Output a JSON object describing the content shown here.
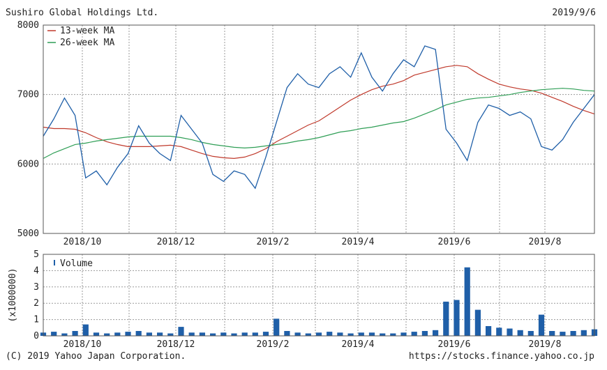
{
  "header": {
    "company": "Sushiro Global Holdings Ltd.",
    "date": "2019/9/6"
  },
  "footer": {
    "copyright": "(C) 2019 Yahoo Japan Corporation.",
    "url": "https://stocks.finance.yahoo.co.jp"
  },
  "colors": {
    "price": "#1f5fa8",
    "ma13": "#c0392b",
    "ma26": "#2e9e55",
    "volume": "#1f5fa8",
    "grid": "#9a9a9a",
    "frame": "#555555"
  },
  "chart_data": [
    {
      "type": "line",
      "title": "",
      "xlabel": "",
      "ylabel": "",
      "ylim": [
        5000,
        8000
      ],
      "y_ticks": [
        "5000",
        "6000",
        "7000",
        "8000"
      ],
      "x_ticks": [
        "2018/10",
        "2018/12",
        "2019/2",
        "2019/4",
        "2019/6",
        "2019/8"
      ],
      "grid": true,
      "legend_position": "top-left",
      "legend": [
        "13-week MA",
        "26-week MA"
      ],
      "x_weeks": [
        0,
        1,
        2,
        3,
        4,
        5,
        6,
        7,
        8,
        9,
        10,
        11,
        12,
        13,
        14,
        15,
        16,
        17,
        18,
        19,
        20,
        21,
        22,
        23,
        24,
        25,
        26,
        27,
        28,
        29,
        30,
        31,
        32,
        33,
        34,
        35,
        36,
        37,
        38,
        39,
        40,
        41,
        42,
        43,
        44,
        45,
        46,
        47,
        48,
        49,
        50,
        51,
        52
      ],
      "series": [
        {
          "name": "Price",
          "values": [
            6400,
            6650,
            6950,
            6700,
            5800,
            5900,
            5700,
            5950,
            6150,
            6550,
            6300,
            6150,
            6050,
            6700,
            6500,
            6300,
            5850,
            5750,
            5900,
            5850,
            5650,
            6100,
            6600,
            7100,
            7300,
            7150,
            7100,
            7300,
            7400,
            7250,
            7600,
            7250,
            7050,
            7300,
            7500,
            7400,
            7700,
            7650,
            6500,
            6300,
            6050,
            6600,
            6850,
            6800,
            6700,
            6750,
            6650,
            6250,
            6200,
            6350,
            6600,
            6800,
            7000
          ]
        },
        {
          "name": "13-week MA",
          "values": [
            6530,
            6510,
            6510,
            6500,
            6450,
            6380,
            6320,
            6280,
            6250,
            6250,
            6250,
            6260,
            6270,
            6250,
            6200,
            6150,
            6110,
            6090,
            6080,
            6100,
            6150,
            6220,
            6320,
            6400,
            6480,
            6560,
            6620,
            6720,
            6820,
            6920,
            7000,
            7070,
            7120,
            7150,
            7200,
            7280,
            7320,
            7360,
            7400,
            7420,
            7400,
            7300,
            7220,
            7150,
            7110,
            7080,
            7060,
            7020,
            6960,
            6900,
            6830,
            6770,
            6720
          ]
        },
        {
          "name": "26-week MA",
          "values": [
            6080,
            6160,
            6220,
            6280,
            6300,
            6330,
            6350,
            6370,
            6390,
            6400,
            6400,
            6400,
            6400,
            6380,
            6350,
            6310,
            6280,
            6260,
            6240,
            6230,
            6240,
            6260,
            6280,
            6300,
            6330,
            6350,
            6380,
            6420,
            6460,
            6480,
            6510,
            6530,
            6560,
            6590,
            6610,
            6660,
            6720,
            6780,
            6850,
            6890,
            6930,
            6950,
            6960,
            6980,
            7000,
            7030,
            7050,
            7070,
            7080,
            7090,
            7080,
            7060,
            7050
          ]
        }
      ]
    },
    {
      "type": "bar",
      "title": "",
      "xlabel": "",
      "ylabel": "(x1000000)",
      "ylim": [
        0,
        5
      ],
      "y_ticks": [
        "0",
        "1",
        "2",
        "3",
        "4",
        "5"
      ],
      "x_ticks": [
        "2018/10",
        "2018/12",
        "2019/2",
        "2019/4",
        "2019/6",
        "2019/8"
      ],
      "grid": true,
      "legend_position": "top-left",
      "legend": [
        "Volume"
      ],
      "series": [
        {
          "name": "Volume",
          "values": [
            0.2,
            0.25,
            0.15,
            0.3,
            0.7,
            0.2,
            0.15,
            0.2,
            0.25,
            0.3,
            0.2,
            0.2,
            0.15,
            0.55,
            0.2,
            0.2,
            0.15,
            0.2,
            0.15,
            0.2,
            0.2,
            0.25,
            1.05,
            0.3,
            0.2,
            0.15,
            0.2,
            0.25,
            0.2,
            0.15,
            0.2,
            0.2,
            0.15,
            0.15,
            0.2,
            0.25,
            0.3,
            0.35,
            2.1,
            2.2,
            4.2,
            1.6,
            0.6,
            0.5,
            0.45,
            0.35,
            0.3,
            1.3,
            0.3,
            0.25,
            0.3,
            0.35,
            0.4
          ]
        }
      ]
    }
  ]
}
